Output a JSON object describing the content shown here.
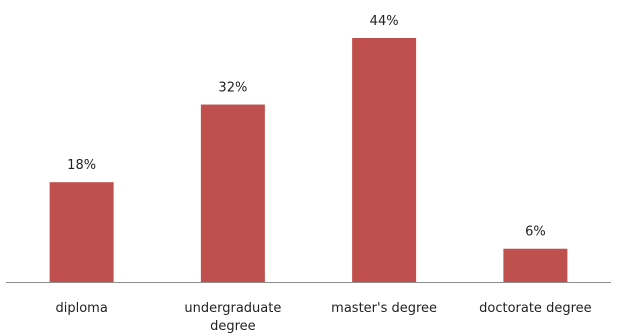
{
  "chart_data": {
    "type": "bar",
    "categories": [
      "diploma",
      "undergraduate degree",
      "master's degree",
      "doctorate degree"
    ],
    "category_lines": [
      [
        "diploma"
      ],
      [
        "undergraduate",
        "degree"
      ],
      [
        "master's degree"
      ],
      [
        "doctorate degree"
      ]
    ],
    "values": [
      18,
      32,
      44,
      6
    ],
    "data_labels": [
      "18%",
      "32%",
      "44%",
      "6%"
    ],
    "ylim": [
      0,
      44
    ],
    "bar_color": "#c0504d",
    "grid": false,
    "legend": "none"
  }
}
